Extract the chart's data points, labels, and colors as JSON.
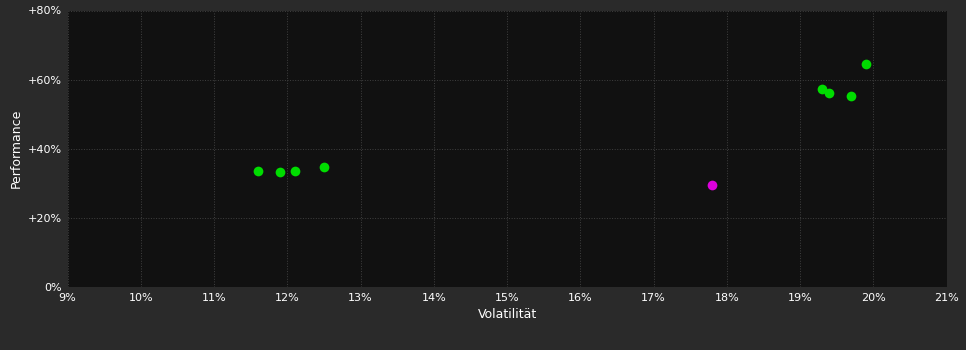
{
  "background_color": "#2a2a2a",
  "plot_bg_color": "#111111",
  "grid_color": "#404040",
  "grid_style": ":",
  "text_color": "#ffffff",
  "xlabel": "Volatilität",
  "ylabel": "Performance",
  "xlim": [
    0.09,
    0.21
  ],
  "ylim": [
    0.0,
    0.8
  ],
  "xtick_values": [
    0.09,
    0.1,
    0.11,
    0.12,
    0.13,
    0.14,
    0.15,
    0.16,
    0.17,
    0.18,
    0.19,
    0.2,
    0.21
  ],
  "ytick_values": [
    0.0,
    0.2,
    0.4,
    0.6,
    0.8
  ],
  "ytick_labels": [
    "0%",
    "+20%",
    "+40%",
    "+60%",
    "+80%"
  ],
  "green_points": [
    [
      0.116,
      0.335
    ],
    [
      0.119,
      0.332
    ],
    [
      0.121,
      0.335
    ],
    [
      0.125,
      0.347
    ],
    [
      0.193,
      0.572
    ],
    [
      0.194,
      0.56
    ],
    [
      0.197,
      0.553
    ],
    [
      0.199,
      0.645
    ]
  ],
  "magenta_points": [
    [
      0.178,
      0.295
    ]
  ],
  "green_color": "#00dd00",
  "magenta_color": "#dd00dd",
  "marker_size": 7
}
